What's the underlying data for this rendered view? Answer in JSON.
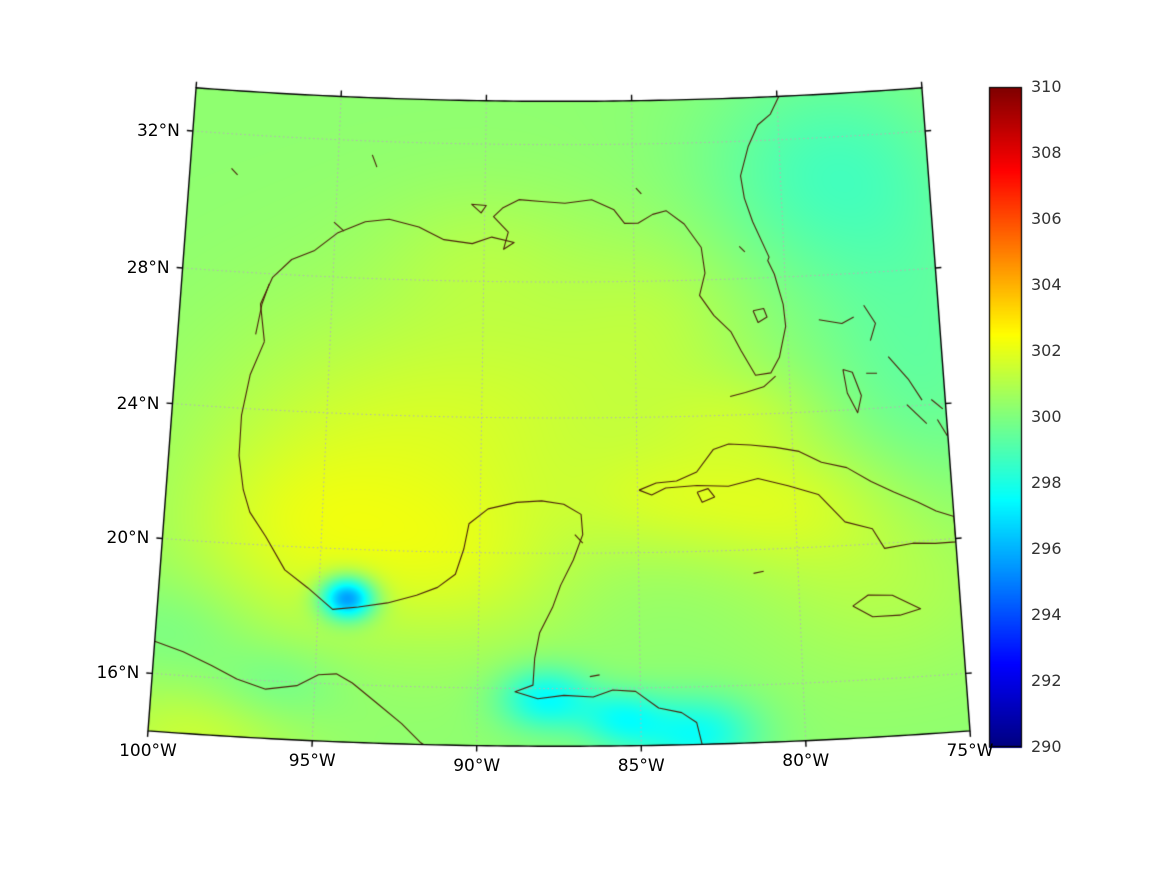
{
  "figure": {
    "background": "#ffffff"
  },
  "colors": {
    "coastline": "#4a1f0a",
    "gridline": "#b4b4b4",
    "boundary": "#000000",
    "axis_label": "#000000",
    "colorbar_label": "#333333"
  },
  "chart_data": {
    "type": "heatmap",
    "map_projection": "lambert-conformal-conic",
    "projection": {
      "central_longitude": -87.5,
      "standard_parallel": 20
    },
    "extent": {
      "lon_min": -100,
      "lon_max": -75,
      "lat_min": 14.3,
      "lat_max": 33.25
    },
    "gridlines": {
      "lons": [
        -100,
        -95,
        -90,
        -85,
        -80,
        -75
      ],
      "lats": [
        16,
        20,
        24,
        28,
        32
      ],
      "style": "dotted"
    },
    "xticks": [
      {
        "label": "100°W",
        "lon": -100
      },
      {
        "label": "95°W",
        "lon": -95
      },
      {
        "label": "90°W",
        "lon": -90
      },
      {
        "label": "85°W",
        "lon": -85
      },
      {
        "label": "80°W",
        "lon": -80
      },
      {
        "label": "75°W",
        "lon": -75
      }
    ],
    "yticks": [
      {
        "label": "32°N",
        "lat": 32
      },
      {
        "label": "28°N",
        "lat": 28
      },
      {
        "label": "24°N",
        "lat": 24
      },
      {
        "label": "20°N",
        "lat": 20
      },
      {
        "label": "16°N",
        "lat": 16
      }
    ],
    "colorbar": {
      "min": 290,
      "max": 310,
      "colormap": "jet",
      "ticks": [
        {
          "label": "310",
          "value": 310
        },
        {
          "label": "308",
          "value": 308
        },
        {
          "label": "306",
          "value": 306
        },
        {
          "label": "304",
          "value": 304
        },
        {
          "label": "302",
          "value": 302
        },
        {
          "label": "300",
          "value": 300
        },
        {
          "label": "298",
          "value": 298
        },
        {
          "label": "296",
          "value": 296
        },
        {
          "label": "294",
          "value": 294
        },
        {
          "label": "292",
          "value": 292
        },
        {
          "label": "290",
          "value": 290
        }
      ]
    },
    "field": {
      "base": 300.3,
      "blobs": [
        [
          -93.5,
          23.0,
          4.0,
          3.0,
          1.1
        ],
        [
          -96.0,
          20.2,
          2.6,
          2.0,
          1.0
        ],
        [
          -90.5,
          19.6,
          2.6,
          1.8,
          1.0
        ],
        [
          -88.0,
          24.5,
          3.5,
          2.5,
          0.7
        ],
        [
          -80.5,
          21.4,
          2.6,
          1.4,
          1.2
        ],
        [
          -84.5,
          21.6,
          2.0,
          1.2,
          0.7
        ],
        [
          -77.0,
          19.2,
          3.0,
          2.2,
          0.9
        ],
        [
          -84.0,
          27.0,
          2.2,
          2.0,
          0.6
        ],
        [
          -81.5,
          24.0,
          2.0,
          1.0,
          0.7
        ],
        [
          -90.0,
          28.8,
          2.5,
          1.5,
          0.5
        ],
        [
          -94.1,
          18.55,
          0.6,
          0.45,
          -5.9
        ],
        [
          -87.9,
          15.7,
          1.0,
          0.65,
          -2.8
        ],
        [
          -85.6,
          15.1,
          0.9,
          0.6,
          -2.2
        ],
        [
          -83.3,
          14.6,
          1.3,
          0.8,
          -2.6
        ],
        [
          -78.5,
          31.0,
          3.0,
          2.2,
          -1.3
        ],
        [
          -75.8,
          25.0,
          2.5,
          4.0,
          -0.9
        ],
        [
          -98.6,
          14.2,
          2.2,
          1.1,
          1.1
        ],
        [
          -96.2,
          15.9,
          1.4,
          0.8,
          -0.7
        ],
        [
          -99.3,
          17.4,
          1.6,
          1.0,
          -0.5
        ]
      ]
    },
    "coastlines": [
      {
        "name": "us-gulf-atlantic-coast",
        "points": [
          [
            -97.15,
            26.0
          ],
          [
            -97.35,
            27.1
          ],
          [
            -97.0,
            27.9
          ],
          [
            -96.4,
            28.45
          ],
          [
            -95.65,
            28.75
          ],
          [
            -94.9,
            29.3
          ],
          [
            -94.0,
            29.65
          ],
          [
            -93.2,
            29.75
          ],
          [
            -92.2,
            29.55
          ],
          [
            -91.35,
            29.2
          ],
          [
            -90.4,
            29.1
          ],
          [
            -89.75,
            29.3
          ],
          [
            -89.0,
            29.15
          ],
          [
            -89.35,
            28.95
          ],
          [
            -89.2,
            29.45
          ],
          [
            -89.7,
            29.9
          ],
          [
            -89.4,
            30.15
          ],
          [
            -88.85,
            30.4
          ],
          [
            -88.1,
            30.35
          ],
          [
            -87.3,
            30.3
          ],
          [
            -86.4,
            30.4
          ],
          [
            -85.65,
            30.1
          ],
          [
            -85.3,
            29.7
          ],
          [
            -84.85,
            29.7
          ],
          [
            -84.35,
            29.95
          ],
          [
            -83.9,
            30.05
          ],
          [
            -83.3,
            29.65
          ],
          [
            -82.75,
            28.95
          ],
          [
            -82.65,
            28.2
          ],
          [
            -82.85,
            27.55
          ],
          [
            -82.4,
            26.95
          ],
          [
            -81.85,
            26.45
          ],
          [
            -81.55,
            25.9
          ],
          [
            -81.1,
            25.15
          ],
          [
            -80.6,
            25.2
          ],
          [
            -80.3,
            25.65
          ],
          [
            -80.05,
            26.55
          ],
          [
            -80.1,
            27.2
          ],
          [
            -80.35,
            28.1
          ],
          [
            -80.55,
            28.5
          ],
          [
            -80.5,
            28.6
          ],
          [
            -81.0,
            29.65
          ],
          [
            -81.25,
            30.35
          ],
          [
            -81.35,
            31.0
          ],
          [
            -81.05,
            31.85
          ],
          [
            -80.7,
            32.45
          ],
          [
            -80.25,
            32.75
          ],
          [
            -79.9,
            33.3
          ]
        ]
      },
      {
        "name": "mexico-central-america-coast",
        "points": [
          [
            -97.15,
            26.0
          ],
          [
            -97.55,
            25.0
          ],
          [
            -97.75,
            23.8
          ],
          [
            -97.75,
            22.6
          ],
          [
            -97.55,
            21.6
          ],
          [
            -97.3,
            20.95
          ],
          [
            -96.75,
            20.25
          ],
          [
            -96.1,
            19.3
          ],
          [
            -95.35,
            18.8
          ],
          [
            -94.55,
            18.2
          ],
          [
            -93.75,
            18.3
          ],
          [
            -92.85,
            18.45
          ],
          [
            -91.95,
            18.7
          ],
          [
            -91.3,
            18.95
          ],
          [
            -90.75,
            19.35
          ],
          [
            -90.5,
            20.1
          ],
          [
            -90.35,
            20.85
          ],
          [
            -89.75,
            21.3
          ],
          [
            -88.85,
            21.5
          ],
          [
            -88.05,
            21.55
          ],
          [
            -87.35,
            21.45
          ],
          [
            -86.8,
            21.15
          ],
          [
            -86.75,
            20.55
          ],
          [
            -87.05,
            19.8
          ],
          [
            -87.45,
            19.05
          ],
          [
            -87.7,
            18.4
          ],
          [
            -88.1,
            17.65
          ],
          [
            -88.25,
            16.9
          ],
          [
            -88.3,
            16.1
          ],
          [
            -88.85,
            15.9
          ],
          [
            -88.15,
            15.7
          ],
          [
            -87.35,
            15.8
          ],
          [
            -86.45,
            15.75
          ],
          [
            -85.85,
            15.95
          ],
          [
            -85.15,
            15.9
          ],
          [
            -84.45,
            15.4
          ],
          [
            -83.75,
            15.25
          ],
          [
            -83.3,
            14.95
          ],
          [
            -83.15,
            14.3
          ]
        ]
      },
      {
        "name": "pacific-coast",
        "points": [
          [
            -100.0,
            16.95
          ],
          [
            -99.1,
            16.7
          ],
          [
            -98.2,
            16.35
          ],
          [
            -97.4,
            16.0
          ],
          [
            -96.5,
            15.75
          ],
          [
            -95.55,
            15.9
          ],
          [
            -94.9,
            16.25
          ],
          [
            -94.35,
            16.3
          ],
          [
            -93.85,
            16.05
          ],
          [
            -93.1,
            15.5
          ],
          [
            -92.3,
            14.9
          ],
          [
            -91.7,
            14.35
          ],
          [
            -91.45,
            14.2
          ]
        ]
      },
      {
        "name": "cuba",
        "points": [
          [
            -84.95,
            21.85
          ],
          [
            -84.4,
            22.05
          ],
          [
            -83.75,
            22.1
          ],
          [
            -83.1,
            22.35
          ],
          [
            -82.55,
            23.0
          ],
          [
            -82.05,
            23.15
          ],
          [
            -81.35,
            23.1
          ],
          [
            -80.55,
            23.0
          ],
          [
            -79.8,
            22.85
          ],
          [
            -79.1,
            22.5
          ],
          [
            -78.3,
            22.3
          ],
          [
            -77.55,
            21.85
          ],
          [
            -76.85,
            21.5
          ],
          [
            -76.1,
            21.15
          ],
          [
            -75.55,
            20.85
          ],
          [
            -75.0,
            20.65
          ],
          [
            -75.0,
            19.9
          ],
          [
            -75.65,
            19.9
          ],
          [
            -76.35,
            19.95
          ],
          [
            -77.25,
            19.85
          ],
          [
            -77.6,
            20.45
          ],
          [
            -78.45,
            20.7
          ],
          [
            -79.25,
            21.55
          ],
          [
            -80.2,
            21.85
          ],
          [
            -81.15,
            22.1
          ],
          [
            -82.1,
            21.9
          ],
          [
            -83.1,
            21.95
          ],
          [
            -84.1,
            21.9
          ],
          [
            -84.55,
            21.7
          ],
          [
            -84.95,
            21.85
          ]
        ]
      },
      {
        "name": "isla-de-la-juventud",
        "points": [
          [
            -83.1,
            21.75
          ],
          [
            -82.75,
            21.85
          ],
          [
            -82.55,
            21.6
          ],
          [
            -82.95,
            21.45
          ],
          [
            -83.1,
            21.75
          ]
        ]
      },
      {
        "name": "jamaica",
        "points": [
          [
            -78.35,
            18.2
          ],
          [
            -77.85,
            18.5
          ],
          [
            -77.1,
            18.45
          ],
          [
            -76.25,
            18.0
          ],
          [
            -76.9,
            17.85
          ],
          [
            -77.75,
            17.85
          ],
          [
            -78.35,
            18.2
          ]
        ]
      },
      {
        "name": "grand-bahama",
        "points": [
          [
            -78.95,
            26.7
          ],
          [
            -78.2,
            26.55
          ],
          [
            -77.8,
            26.72
          ]
        ]
      },
      {
        "name": "abaco",
        "points": [
          [
            -77.45,
            27.05
          ],
          [
            -77.1,
            26.5
          ],
          [
            -77.3,
            26.0
          ]
        ]
      },
      {
        "name": "andros",
        "points": [
          [
            -78.25,
            25.2
          ],
          [
            -77.95,
            25.1
          ],
          [
            -77.7,
            24.4
          ],
          [
            -77.85,
            23.9
          ],
          [
            -78.15,
            24.5
          ],
          [
            -78.25,
            25.2
          ]
        ]
      },
      {
        "name": "eleuthera",
        "points": [
          [
            -76.75,
            25.5
          ],
          [
            -76.15,
            24.8
          ],
          [
            -75.75,
            24.15
          ]
        ]
      },
      {
        "name": "exuma",
        "points": [
          [
            -76.25,
            24.05
          ],
          [
            -75.65,
            23.45
          ]
        ]
      },
      {
        "name": "long-island-bahamas",
        "points": [
          [
            -75.3,
            23.55
          ],
          [
            -75.02,
            23.05
          ]
        ]
      },
      {
        "name": "san-salvador",
        "points": [
          [
            -75.45,
            24.15
          ],
          [
            -75.1,
            23.85
          ]
        ]
      },
      {
        "name": "new-providence",
        "points": [
          [
            -77.5,
            25.05
          ],
          [
            -77.15,
            25.03
          ]
        ]
      },
      {
        "name": "florida-keys",
        "points": [
          [
            -80.45,
            25.1
          ],
          [
            -80.85,
            24.8
          ],
          [
            -81.45,
            24.65
          ],
          [
            -81.95,
            24.55
          ]
        ]
      },
      {
        "name": "lake-okeechobee",
        "points": [
          [
            -81.1,
            27.05
          ],
          [
            -80.75,
            27.1
          ],
          [
            -80.65,
            26.85
          ],
          [
            -80.95,
            26.7
          ],
          [
            -81.1,
            27.05
          ]
        ]
      },
      {
        "name": "cozumel",
        "points": [
          [
            -87.0,
            20.55
          ],
          [
            -86.75,
            20.3
          ]
        ]
      },
      {
        "name": "grand-cayman",
        "points": [
          [
            -81.4,
            19.3
          ],
          [
            -81.08,
            19.35
          ]
        ]
      },
      {
        "name": "roatan",
        "points": [
          [
            -86.55,
            16.35
          ],
          [
            -86.25,
            16.4
          ]
        ]
      },
      {
        "name": "laguna-madre",
        "points": [
          [
            -97.45,
            26.2
          ],
          [
            -97.3,
            27.1
          ],
          [
            -97.1,
            27.7
          ]
        ]
      },
      {
        "name": "galveston-bay",
        "points": [
          [
            -95.05,
            29.6
          ],
          [
            -94.7,
            29.35
          ]
        ]
      },
      {
        "name": "lake-pontchartrain",
        "points": [
          [
            -90.45,
            30.25
          ],
          [
            -89.95,
            30.22
          ],
          [
            -90.12,
            30.0
          ],
          [
            -90.45,
            30.25
          ]
        ]
      },
      {
        "name": "toledo-bend",
        "points": [
          [
            -93.85,
            31.6
          ],
          [
            -93.68,
            31.25
          ]
        ]
      },
      {
        "name": "texas-hill-lakes",
        "points": [
          [
            -98.6,
            31.0
          ],
          [
            -98.38,
            30.82
          ]
        ]
      },
      {
        "name": "florida-lakes",
        "points": [
          [
            -81.48,
            28.95
          ],
          [
            -81.3,
            28.78
          ]
        ]
      },
      {
        "name": "lake-seminole",
        "points": [
          [
            -84.9,
            30.72
          ],
          [
            -84.72,
            30.55
          ]
        ]
      }
    ]
  }
}
